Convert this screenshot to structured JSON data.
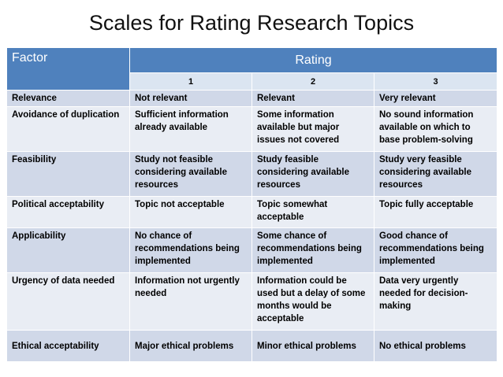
{
  "title": "Scales for Rating Research Topics",
  "table": {
    "header_factor": "Factor",
    "header_rating": "Rating",
    "rating_levels": [
      "1",
      "2",
      "3"
    ],
    "rows": [
      {
        "factor": "Relevance",
        "values": [
          "Not relevant",
          "Relevant",
          "Very relevant"
        ]
      },
      {
        "factor": "Avoidance of duplication",
        "values": [
          "Sufficient information already available",
          "Some information available but major issues not covered",
          "No sound information available on which to base problem-solving"
        ]
      },
      {
        "factor": "Feasibility",
        "values": [
          "Study not feasible considering available resources",
          "Study feasible considering available resources",
          "Study very feasible considering available resources"
        ]
      },
      {
        "factor": "Political acceptability",
        "values": [
          "Topic not acceptable",
          "Topic somewhat acceptable",
          "Topic fully acceptable"
        ]
      },
      {
        "factor": "Applicability",
        "values": [
          "No chance of recommendations being implemented",
          "Some chance of recommendations being implemented",
          "Good chance of recommendations being implemented"
        ]
      },
      {
        "factor": "Urgency of data needed",
        "values": [
          "Information not urgently needed",
          "Information could be used but a delay of some months would be acceptable",
          "Data very urgently needed for decision-making"
        ]
      },
      {
        "factor": "Ethical acceptability",
        "values": [
          "Major ethical problems",
          "Minor ethical problems",
          "No ethical problems"
        ]
      }
    ]
  },
  "colors": {
    "header_bg": "#4f81bd",
    "subheader_bg": "#dbe5f1",
    "row_odd_bg": "#d0d8e8",
    "row_even_bg": "#e9edf4"
  }
}
